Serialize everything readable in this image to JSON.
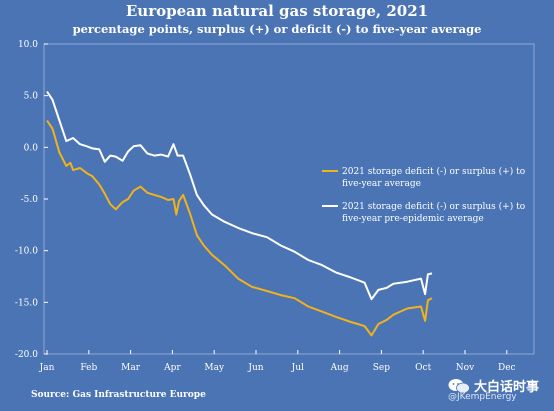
{
  "chart_data": {
    "type": "line",
    "title": "European natural gas storage, 2021",
    "subtitle": "percentage points, surplus (+) or deficit (-) to five-year average",
    "xlabel": "",
    "ylabel": "",
    "x_ticks": [
      "Jan",
      "Feb",
      "Mar",
      "Apr",
      "May",
      "Jun",
      "Jul",
      "Aug",
      "Sep",
      "Oct",
      "Nov",
      "Dec"
    ],
    "ylim": [
      -20,
      10
    ],
    "y_ticks": [
      10,
      5,
      0,
      -5,
      -10,
      -15,
      -20
    ],
    "y_tick_labels": [
      "10.0",
      "5.0",
      "0.0",
      "-5.0",
      "-10.0",
      "-15.0",
      "-20.0"
    ],
    "grid": false,
    "legend_position": "right",
    "series": [
      {
        "name": "2021 storage deficit (-) or surplus (+) to five-year average",
        "name_lines": [
          "2021 storage deficit (-) or surplus (+) to",
          "five-year average"
        ],
        "color": "#f2b21b",
        "x": [
          "Jan 1",
          "Jan 5",
          "Jan 10",
          "Jan 15",
          "Jan 18",
          "Jan 20",
          "Jan 25",
          "Jan 30",
          "Feb 3",
          "Feb 8",
          "Feb 12",
          "Feb 16",
          "Feb 20",
          "Feb 25",
          "Mar 1",
          "Mar 5",
          "Mar 10",
          "Mar 15",
          "Mar 20",
          "Mar 25",
          "Mar 30",
          "Apr 3",
          "Apr 5",
          "Apr 7",
          "Apr 10",
          "Apr 15",
          "Apr 20",
          "Apr 25",
          "May 1",
          "May 10",
          "May 20",
          "May 30",
          "Jun 10",
          "Jun 20",
          "Jun 30",
          "Jul 10",
          "Jul 20",
          "Jul 30",
          "Aug 10",
          "Aug 20",
          "Aug 25",
          "Aug 30",
          "Sep 5",
          "Sep 10",
          "Sep 20",
          "Sep 30",
          "Oct 3",
          "Oct 5",
          "Oct 8"
        ],
        "values": [
          2.6,
          1.8,
          -0.5,
          -1.8,
          -1.5,
          -2.2,
          -2.0,
          -2.5,
          -2.8,
          -3.6,
          -4.5,
          -5.5,
          -6.0,
          -5.3,
          -5.0,
          -4.2,
          -3.8,
          -4.4,
          -4.6,
          -4.8,
          -5.1,
          -5.0,
          -6.5,
          -5.2,
          -4.6,
          -6.4,
          -8.5,
          -9.5,
          -10.4,
          -11.4,
          -12.7,
          -13.5,
          -13.9,
          -14.3,
          -14.6,
          -15.4,
          -15.9,
          -16.4,
          -16.9,
          -17.3,
          -18.2,
          -17.1,
          -16.7,
          -16.2,
          -15.6,
          -15.4,
          -16.8,
          -14.8,
          -14.6
        ]
      },
      {
        "name": "2021 storage deficit (-) or surplus (+) to five-year pre-epidemic average",
        "name_lines": [
          "2021 storage deficit (-) or surplus (+) to",
          "five-year pre-epidemic average"
        ],
        "color": "#ffffff",
        "x": [
          "Jan 1",
          "Jan 5",
          "Jan 10",
          "Jan 15",
          "Jan 20",
          "Jan 25",
          "Jan 30",
          "Feb 3",
          "Feb 8",
          "Feb 12",
          "Feb 16",
          "Feb 20",
          "Feb 25",
          "Mar 1",
          "Mar 5",
          "Mar 10",
          "Mar 15",
          "Mar 20",
          "Mar 25",
          "Mar 30",
          "Apr 3",
          "Apr 6",
          "Apr 10",
          "Apr 15",
          "Apr 20",
          "Apr 25",
          "May 1",
          "May 10",
          "May 20",
          "May 30",
          "Jun 10",
          "Jun 20",
          "Jun 30",
          "Jul 10",
          "Jul 20",
          "Jul 30",
          "Aug 10",
          "Aug 20",
          "Aug 25",
          "Aug 30",
          "Sep 5",
          "Sep 10",
          "Sep 20",
          "Sep 30",
          "Oct 3",
          "Oct 5",
          "Oct 8"
        ],
        "values": [
          5.4,
          4.6,
          2.6,
          0.6,
          0.9,
          0.3,
          0.1,
          -0.1,
          -0.2,
          -1.4,
          -0.8,
          -0.9,
          -1.3,
          -0.4,
          0.1,
          0.2,
          -0.6,
          -0.8,
          -0.7,
          -0.9,
          0.3,
          -0.8,
          -0.8,
          -2.6,
          -4.6,
          -5.6,
          -6.5,
          -7.2,
          -7.8,
          -8.3,
          -8.7,
          -9.5,
          -10.1,
          -10.9,
          -11.4,
          -12.1,
          -12.6,
          -13.1,
          -14.7,
          -13.8,
          -13.6,
          -13.2,
          -13.0,
          -12.7,
          -14.2,
          -12.3,
          -12.2
        ]
      }
    ]
  },
  "source": "Source: Gas Infrastructure Europe",
  "watermark": {
    "text": "大白话时事",
    "handle": "@JKempEnergy"
  }
}
